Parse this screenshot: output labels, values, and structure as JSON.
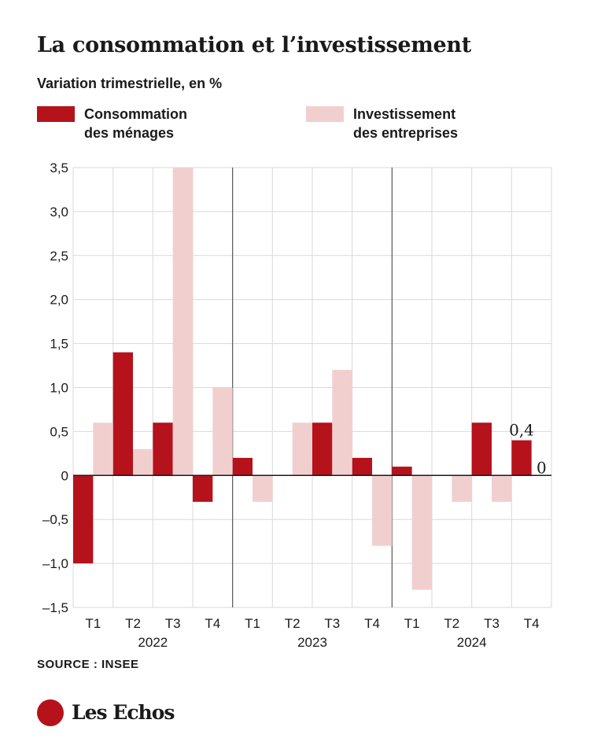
{
  "header": {
    "title": "La consommation et l’investissement",
    "subtitle": "Variation trimestrielle, en %"
  },
  "legend": {
    "consumption": {
      "line1": "Consommation",
      "line2": "des ménages"
    },
    "investment": {
      "line1": "Investissement",
      "line2": "des entreprises"
    }
  },
  "footer": {
    "source": "SOURCE : INSEE",
    "brand": "Les Echos"
  },
  "colors": {
    "consumption": "#b5121b",
    "investment": "#f2cfcf",
    "grid": "#d9d9d9",
    "year_separator": "#555555",
    "brand": "#b5121b"
  },
  "chart_data": {
    "type": "bar",
    "categories": [
      "T1",
      "T2",
      "T3",
      "T4",
      "T1",
      "T2",
      "T3",
      "T4",
      "T1",
      "T2",
      "T3",
      "T4"
    ],
    "groups": [
      {
        "label": "2022",
        "categories": [
          "T1",
          "T2",
          "T3",
          "T4"
        ]
      },
      {
        "label": "2023",
        "categories": [
          "T1",
          "T2",
          "T3",
          "T4"
        ]
      },
      {
        "label": "2024",
        "categories": [
          "T1",
          "T2",
          "T3",
          "T4"
        ]
      }
    ],
    "series": [
      {
        "name": "Consommation des ménages",
        "values": [
          -1.0,
          1.4,
          0.6,
          -0.3,
          0.2,
          0.0,
          0.6,
          0.2,
          0.1,
          0.0,
          0.6,
          0.4
        ]
      },
      {
        "name": "Investissement des entreprises",
        "values": [
          0.6,
          0.3,
          3.5,
          1.0,
          -0.3,
          0.6,
          1.2,
          -0.8,
          -1.3,
          -0.3,
          -0.3,
          0.0
        ]
      }
    ],
    "ylim": [
      -1.5,
      3.5
    ],
    "yticks": [
      -1.5,
      -1.0,
      -0.5,
      0,
      0.5,
      1.0,
      1.5,
      2.0,
      2.5,
      3.0,
      3.5
    ],
    "ytick_labels": [
      "–1,5",
      "–1,0",
      "–0,5",
      "0",
      "0,5",
      "1,0",
      "1,5",
      "2,0",
      "2,5",
      "3,0",
      "3,5"
    ],
    "annotations": [
      {
        "category_index": 11,
        "series": 0,
        "text": "0,4"
      },
      {
        "category_index": 11,
        "series": 1,
        "text": "0"
      }
    ],
    "grid": true,
    "legend_position": "top"
  }
}
